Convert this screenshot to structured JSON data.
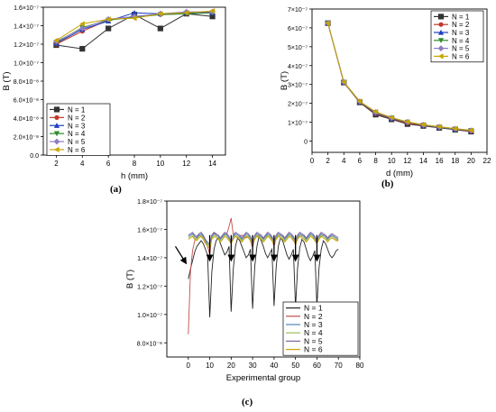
{
  "panel_labels": [
    "(a)",
    "(b)",
    "(c)"
  ],
  "chart_data": [
    {
      "type": "line",
      "panel": "(a)",
      "xlabel": "h (mm)",
      "ylabel": "B (T)",
      "xlim": [
        1,
        15
      ],
      "ylim": [
        0,
        1.6e-07
      ],
      "xticks": [
        "2",
        "4",
        "6",
        "8",
        "10",
        "12",
        "14"
      ],
      "xtick_values": [
        2,
        4,
        6,
        8,
        10,
        12,
        14
      ],
      "yticks": [
        "0.0",
        "2.0×10⁻⁸",
        "4.0×10⁻⁸",
        "6.0×10⁻⁸",
        "8.0×10⁻⁸",
        "1.0×10⁻⁷",
        "1.2×10⁻⁷",
        "1.4×10⁻⁷",
        "1.6×10⁻⁷"
      ],
      "ytick_values": [
        0,
        2e-08,
        4e-08,
        6e-08,
        8e-08,
        1e-07,
        1.2e-07,
        1.4e-07,
        1.6e-07
      ],
      "legend_position": "bottom-left",
      "x": [
        2,
        4,
        6,
        8,
        10,
        12,
        14
      ],
      "series": [
        {
          "name": "N = 1",
          "color": "#333333",
          "marker": "square",
          "values": [
            1.19e-07,
            1.15e-07,
            1.37e-07,
            1.52e-07,
            1.37e-07,
            1.53e-07,
            1.5e-07
          ]
        },
        {
          "name": "N = 2",
          "color": "#c0392b",
          "marker": "circle",
          "values": [
            1.2e-07,
            1.34e-07,
            1.46e-07,
            1.5e-07,
            1.52e-07,
            1.53e-07,
            1.55e-07
          ]
        },
        {
          "name": "N = 3",
          "color": "#1f3fbf",
          "marker": "triangle-up",
          "values": [
            1.21e-07,
            1.36e-07,
            1.45e-07,
            1.54e-07,
            1.53e-07,
            1.54e-07,
            1.54e-07
          ]
        },
        {
          "name": "N = 4",
          "color": "#2e8b2e",
          "marker": "triangle-down",
          "values": [
            1.22e-07,
            1.38e-07,
            1.46e-07,
            1.49e-07,
            1.52e-07,
            1.53e-07,
            1.54e-07
          ]
        },
        {
          "name": "N = 5",
          "color": "#8e7cc3",
          "marker": "diamond",
          "values": [
            1.23e-07,
            1.37e-07,
            1.47e-07,
            1.5e-07,
            1.53e-07,
            1.55e-07,
            1.55e-07
          ]
        },
        {
          "name": "N = 6",
          "color": "#c9a400",
          "marker": "triangle-left",
          "values": [
            1.24e-07,
            1.42e-07,
            1.47e-07,
            1.48e-07,
            1.53e-07,
            1.54e-07,
            1.56e-07
          ]
        }
      ]
    },
    {
      "type": "line",
      "panel": "(b)",
      "xlabel": "d (mm)",
      "ylabel": "B (T)",
      "xlim": [
        0,
        22
      ],
      "ylim": [
        -6e-08,
        7e-07
      ],
      "xticks": [
        "0",
        "2",
        "4",
        "6",
        "8",
        "10",
        "12",
        "14",
        "16",
        "18",
        "20",
        "22"
      ],
      "xtick_values": [
        0,
        2,
        4,
        6,
        8,
        10,
        12,
        14,
        16,
        18,
        20,
        22
      ],
      "yticks": [
        "0",
        "1×10⁻⁷",
        "2×10⁻⁷",
        "3×10⁻⁷",
        "4×10⁻⁷",
        "5×10⁻⁷",
        "6×10⁻⁷",
        "7×10⁻⁷"
      ],
      "ytick_values": [
        0,
        1e-07,
        2e-07,
        3e-07,
        4e-07,
        5e-07,
        6e-07,
        7e-07
      ],
      "legend_position": "top-right",
      "x": [
        2,
        4,
        6,
        8,
        10,
        12,
        14,
        16,
        18,
        20
      ],
      "series": [
        {
          "name": "N = 1",
          "color": "#333333",
          "marker": "square",
          "values": [
            6.25e-07,
            3.1e-07,
            2.05e-07,
            1.4e-07,
            1.15e-07,
            9e-08,
            8e-08,
            7e-08,
            6e-08,
            5e-08
          ]
        },
        {
          "name": "N = 2",
          "color": "#c0392b",
          "marker": "circle",
          "values": [
            6.25e-07,
            3.1e-07,
            2.07e-07,
            1.45e-07,
            1.18e-07,
            9.5e-08,
            8.2e-08,
            7.2e-08,
            6.2e-08,
            5.2e-08
          ]
        },
        {
          "name": "N = 3",
          "color": "#1f3fbf",
          "marker": "triangle-up",
          "values": [
            6.25e-07,
            3.12e-07,
            2.08e-07,
            1.5e-07,
            1.2e-07,
            1e-07,
            8.4e-08,
            7.3e-08,
            6.3e-08,
            5.5e-08
          ]
        },
        {
          "name": "N = 4",
          "color": "#2e8b2e",
          "marker": "triangle-down",
          "values": [
            6.25e-07,
            3.12e-07,
            2.09e-07,
            1.52e-07,
            1.22e-07,
            1e-07,
            8.5e-08,
            7.4e-08,
            6.4e-08,
            5.6e-08
          ]
        },
        {
          "name": "N = 5",
          "color": "#8e7cc3",
          "marker": "diamond",
          "values": [
            6.25e-07,
            3.13e-07,
            2.1e-07,
            1.53e-07,
            1.23e-07,
            1.01e-07,
            8.6e-08,
            7.5e-08,
            6.5e-08,
            5.6e-08
          ]
        },
        {
          "name": "N = 6",
          "color": "#c9a400",
          "marker": "triangle-left",
          "values": [
            6.25e-07,
            3.13e-07,
            2.1e-07,
            1.55e-07,
            1.25e-07,
            1.02e-07,
            8.7e-08,
            7.6e-08,
            6.6e-08,
            5.7e-08
          ]
        }
      ]
    },
    {
      "type": "line",
      "panel": "(c)",
      "xlabel": "Experimental group",
      "ylabel": "B (T)",
      "xlim": [
        -10,
        80
      ],
      "ylim": [
        7e-08,
        1.8e-07
      ],
      "xticks": [
        "0",
        "10",
        "20",
        "30",
        "40",
        "50",
        "60",
        "70",
        "80"
      ],
      "xtick_values": [
        0,
        10,
        20,
        30,
        40,
        50,
        60,
        70,
        80
      ],
      "yticks": [
        "8.0×10⁻⁸",
        "1.0×10⁻⁷",
        "1.2×10⁻⁷",
        "1.4×10⁻⁷",
        "1.6×10⁻⁷",
        "1.8×10⁻⁷"
      ],
      "ytick_values": [
        8e-08,
        1e-07,
        1.2e-07,
        1.4e-07,
        1.6e-07,
        1.8e-07
      ],
      "legend_position": "bottom-right",
      "x": [
        0,
        1,
        2,
        3,
        4,
        5,
        6,
        7,
        8,
        9,
        10,
        11,
        12,
        13,
        14,
        15,
        16,
        17,
        18,
        19,
        20,
        21,
        22,
        23,
        24,
        25,
        26,
        27,
        28,
        29,
        30,
        31,
        32,
        33,
        34,
        35,
        36,
        37,
        38,
        39,
        40,
        41,
        42,
        43,
        44,
        45,
        46,
        47,
        48,
        49,
        50,
        51,
        52,
        53,
        54,
        55,
        56,
        57,
        58,
        59,
        60,
        61,
        62,
        63,
        64,
        65,
        66,
        67,
        68,
        69,
        70
      ],
      "series": [
        {
          "name": "N = 1",
          "color": "#222222",
          "values": [
            1.25e-07,
            1.32e-07,
            1.38e-07,
            1.44e-07,
            1.48e-07,
            1.5e-07,
            1.52e-07,
            1.5e-07,
            1.46e-07,
            1.42e-07,
            9.8e-08,
            1.3e-07,
            1.46e-07,
            1.52e-07,
            1.54e-07,
            1.5e-07,
            1.46e-07,
            1.42e-07,
            1.44e-07,
            1.48e-07,
            1.02e-07,
            1.32e-07,
            1.48e-07,
            1.54e-07,
            1.52e-07,
            1.48e-07,
            1.44e-07,
            1.4e-07,
            1.42e-07,
            1.46e-07,
            1.04e-07,
            1.34e-07,
            1.48e-07,
            1.55e-07,
            1.52e-07,
            1.48e-07,
            1.43e-07,
            1.4e-07,
            1.43e-07,
            1.46e-07,
            1.06e-07,
            1.34e-07,
            1.48e-07,
            1.54e-07,
            1.52e-07,
            1.47e-07,
            1.42e-07,
            1.39e-07,
            1.42e-07,
            1.46e-07,
            1.05e-07,
            1.33e-07,
            1.47e-07,
            1.53e-07,
            1.51e-07,
            1.46e-07,
            1.41e-07,
            1.38e-07,
            1.41e-07,
            1.45e-07,
            1.06e-07,
            1.33e-07,
            1.46e-07,
            1.52e-07,
            1.5e-07,
            1.46e-07,
            1.42e-07,
            1.4e-07,
            1.42e-07,
            1.45e-07,
            1.46e-07
          ]
        },
        {
          "name": "N = 2",
          "color": "#c0504d",
          "values": [
            8.6e-08,
            1.3e-07,
            1.45e-07,
            1.52e-07,
            1.55e-07,
            1.56e-07,
            1.55e-07,
            1.55e-07,
            1.52e-07,
            1.48e-07,
            1.42e-07,
            1.56e-07,
            1.58e-07,
            1.56e-07,
            1.55e-07,
            1.54e-07,
            1.55e-07,
            1.56e-07,
            1.57e-07,
            1.62e-07,
            1.68e-07,
            1.56e-07,
            1.55e-07,
            1.54e-07,
            1.55e-07,
            1.56e-07,
            1.55e-07,
            1.54e-07,
            1.55e-07,
            1.52e-07,
            1.47e-07,
            1.54e-07,
            1.55e-07,
            1.56e-07,
            1.55e-07,
            1.54e-07,
            1.55e-07,
            1.56e-07,
            1.55e-07,
            1.53e-07,
            1.48e-07,
            1.54e-07,
            1.55e-07,
            1.56e-07,
            1.55e-07,
            1.54e-07,
            1.55e-07,
            1.56e-07,
            1.55e-07,
            1.53e-07,
            1.49e-07,
            1.54e-07,
            1.55e-07,
            1.56e-07,
            1.55e-07,
            1.54e-07,
            1.55e-07,
            1.56e-07,
            1.55e-07,
            1.53e-07,
            1.5e-07,
            1.54e-07,
            1.55e-07,
            1.56e-07,
            1.55e-07,
            1.54e-07,
            1.55e-07,
            1.55e-07,
            1.54e-07,
            1.53e-07,
            1.52e-07
          ]
        },
        {
          "name": "N = 3",
          "color": "#4f81bd",
          "values": [
            1.55e-07,
            1.56e-07,
            1.57e-07,
            1.55e-07,
            1.54e-07,
            1.56e-07,
            1.57e-07,
            1.55e-07,
            1.52e-07,
            1.5e-07,
            1.48e-07,
            1.55e-07,
            1.57e-07,
            1.56e-07,
            1.55e-07,
            1.53e-07,
            1.55e-07,
            1.57e-07,
            1.56e-07,
            1.54e-07,
            1.5e-07,
            1.55e-07,
            1.57e-07,
            1.56e-07,
            1.55e-07,
            1.53e-07,
            1.55e-07,
            1.57e-07,
            1.56e-07,
            1.54e-07,
            1.5e-07,
            1.55e-07,
            1.57e-07,
            1.56e-07,
            1.55e-07,
            1.53e-07,
            1.55e-07,
            1.57e-07,
            1.56e-07,
            1.54e-07,
            1.51e-07,
            1.55e-07,
            1.57e-07,
            1.56e-07,
            1.55e-07,
            1.53e-07,
            1.55e-07,
            1.57e-07,
            1.56e-07,
            1.54e-07,
            1.51e-07,
            1.55e-07,
            1.57e-07,
            1.56e-07,
            1.55e-07,
            1.53e-07,
            1.55e-07,
            1.57e-07,
            1.56e-07,
            1.54e-07,
            1.51e-07,
            1.55e-07,
            1.57e-07,
            1.56e-07,
            1.55e-07,
            1.53e-07,
            1.55e-07,
            1.56e-07,
            1.55e-07,
            1.54e-07,
            1.53e-07
          ]
        },
        {
          "name": "N = 4",
          "color": "#9bbb59",
          "values": [
            1.54e-07,
            1.55e-07,
            1.56e-07,
            1.54e-07,
            1.53e-07,
            1.55e-07,
            1.56e-07,
            1.54e-07,
            1.51e-07,
            1.49e-07,
            1.5e-07,
            1.54e-07,
            1.56e-07,
            1.55e-07,
            1.54e-07,
            1.52e-07,
            1.54e-07,
            1.56e-07,
            1.55e-07,
            1.53e-07,
            1.52e-07,
            1.54e-07,
            1.56e-07,
            1.55e-07,
            1.54e-07,
            1.52e-07,
            1.54e-07,
            1.56e-07,
            1.55e-07,
            1.53e-07,
            1.52e-07,
            1.54e-07,
            1.56e-07,
            1.55e-07,
            1.54e-07,
            1.52e-07,
            1.54e-07,
            1.56e-07,
            1.55e-07,
            1.53e-07,
            1.52e-07,
            1.54e-07,
            1.56e-07,
            1.55e-07,
            1.54e-07,
            1.52e-07,
            1.54e-07,
            1.56e-07,
            1.55e-07,
            1.53e-07,
            1.52e-07,
            1.54e-07,
            1.56e-07,
            1.55e-07,
            1.54e-07,
            1.52e-07,
            1.54e-07,
            1.56e-07,
            1.55e-07,
            1.53e-07,
            1.52e-07,
            1.54e-07,
            1.56e-07,
            1.55e-07,
            1.54e-07,
            1.52e-07,
            1.54e-07,
            1.55e-07,
            1.54e-07,
            1.53e-07,
            1.53e-07
          ]
        },
        {
          "name": "N = 5",
          "color": "#8064a2",
          "values": [
            1.56e-07,
            1.57e-07,
            1.58e-07,
            1.56e-07,
            1.55e-07,
            1.57e-07,
            1.58e-07,
            1.56e-07,
            1.53e-07,
            1.51e-07,
            1.5e-07,
            1.56e-07,
            1.58e-07,
            1.57e-07,
            1.56e-07,
            1.54e-07,
            1.56e-07,
            1.58e-07,
            1.57e-07,
            1.55e-07,
            1.51e-07,
            1.56e-07,
            1.58e-07,
            1.57e-07,
            1.56e-07,
            1.54e-07,
            1.56e-07,
            1.58e-07,
            1.57e-07,
            1.55e-07,
            1.51e-07,
            1.56e-07,
            1.58e-07,
            1.57e-07,
            1.56e-07,
            1.54e-07,
            1.56e-07,
            1.58e-07,
            1.57e-07,
            1.55e-07,
            1.52e-07,
            1.56e-07,
            1.58e-07,
            1.57e-07,
            1.56e-07,
            1.54e-07,
            1.56e-07,
            1.58e-07,
            1.57e-07,
            1.55e-07,
            1.52e-07,
            1.56e-07,
            1.58e-07,
            1.57e-07,
            1.56e-07,
            1.54e-07,
            1.56e-07,
            1.58e-07,
            1.57e-07,
            1.55e-07,
            1.52e-07,
            1.56e-07,
            1.58e-07,
            1.57e-07,
            1.56e-07,
            1.54e-07,
            1.56e-07,
            1.57e-07,
            1.56e-07,
            1.55e-07,
            1.54e-07
          ]
        },
        {
          "name": "N = 6",
          "color": "#c9a400",
          "values": [
            1.53e-07,
            1.54e-07,
            1.55e-07,
            1.53e-07,
            1.52e-07,
            1.54e-07,
            1.55e-07,
            1.53e-07,
            1.5e-07,
            1.48e-07,
            1.47e-07,
            1.53e-07,
            1.55e-07,
            1.54e-07,
            1.53e-07,
            1.51e-07,
            1.53e-07,
            1.55e-07,
            1.54e-07,
            1.52e-07,
            1.5e-07,
            1.53e-07,
            1.55e-07,
            1.54e-07,
            1.53e-07,
            1.51e-07,
            1.53e-07,
            1.55e-07,
            1.54e-07,
            1.52e-07,
            1.5e-07,
            1.53e-07,
            1.55e-07,
            1.54e-07,
            1.53e-07,
            1.51e-07,
            1.53e-07,
            1.55e-07,
            1.54e-07,
            1.52e-07,
            1.5e-07,
            1.53e-07,
            1.55e-07,
            1.54e-07,
            1.53e-07,
            1.51e-07,
            1.53e-07,
            1.55e-07,
            1.54e-07,
            1.52e-07,
            1.5e-07,
            1.53e-07,
            1.55e-07,
            1.54e-07,
            1.53e-07,
            1.51e-07,
            1.53e-07,
            1.55e-07,
            1.54e-07,
            1.52e-07,
            1.5e-07,
            1.53e-07,
            1.55e-07,
            1.54e-07,
            1.53e-07,
            1.51e-07,
            1.53e-07,
            1.54e-07,
            1.53e-07,
            1.52e-07,
            1.52e-07
          ]
        }
      ],
      "arrow_annotations": [
        {
          "from": [
            -6,
            1.48e-07
          ],
          "to": [
            -1,
            1.36e-07
          ]
        },
        {
          "from": [
            10,
            1.56e-07
          ],
          "to": [
            10,
            1.38e-07
          ]
        },
        {
          "from": [
            20,
            1.56e-07
          ],
          "to": [
            20,
            1.38e-07
          ]
        },
        {
          "from": [
            30,
            1.56e-07
          ],
          "to": [
            30,
            1.38e-07
          ]
        },
        {
          "from": [
            40,
            1.56e-07
          ],
          "to": [
            40,
            1.38e-07
          ]
        },
        {
          "from": [
            50,
            1.56e-07
          ],
          "to": [
            50,
            1.38e-07
          ]
        },
        {
          "from": [
            60,
            1.56e-07
          ],
          "to": [
            60,
            1.38e-07
          ]
        }
      ]
    }
  ]
}
